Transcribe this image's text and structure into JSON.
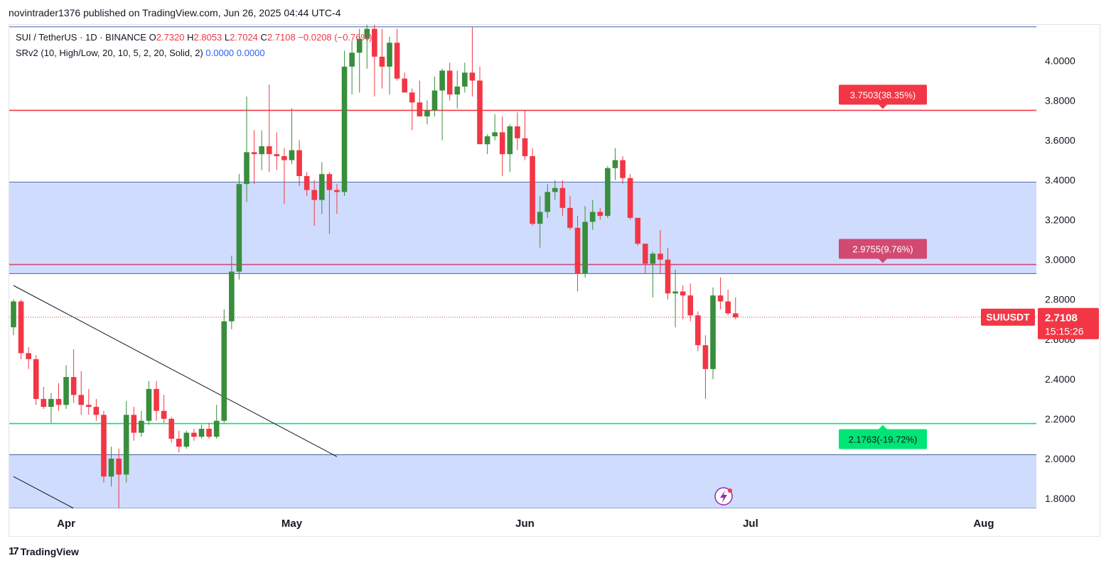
{
  "header": {
    "published": "novintrader1376 published on TradingView.com, Jun 26, 2025 04:44 UTC-4"
  },
  "legend": {
    "symbol": "SUI / TetherUS · 1D · BINANCE",
    "open_label": "O",
    "open": "2.7320",
    "high_label": "H",
    "high": "2.8053",
    "low_label": "L",
    "low": "2.7024",
    "close_label": "C",
    "close": "2.7108",
    "change": "−0.0208 (−0.76%)",
    "indicator": "SRv2 (10, High/Low, 20, 10, 5, 2, 20, Solid, 2)",
    "ind_v1": "0.0000",
    "ind_v2": "0.0000"
  },
  "footer": {
    "brand": "TradingView"
  },
  "colors": {
    "up": "#388e3c",
    "down": "#f23645",
    "zone": "#d0dcfd",
    "resistance": "#f23645",
    "mid": "#d24a72",
    "support": "#00e676"
  },
  "chart_data": {
    "type": "candlestick",
    "symbol": "SUIUSDT",
    "ylim": [
      1.75,
      4.18
    ],
    "y_ticks": [
      "4.0000",
      "3.8000",
      "3.6000",
      "3.4000",
      "3.2000",
      "3.0000",
      "2.8000",
      "2.6000",
      "2.4000",
      "2.2000",
      "2.0000",
      "1.8000"
    ],
    "x_axis": {
      "start_date": "2025-03-25",
      "end_date": "2025-08-08",
      "labels": [
        {
          "date": "2025-04-01",
          "label": "Apr"
        },
        {
          "date": "2025-05-01",
          "label": "May"
        },
        {
          "date": "2025-06-01",
          "label": "Jun"
        },
        {
          "date": "2025-07-01",
          "label": "Jul"
        },
        {
          "date": "2025-08-01",
          "label": "Aug"
        }
      ]
    },
    "candles": [
      [
        "2025-03-25",
        2.66,
        2.8,
        2.62,
        2.79
      ],
      [
        "2025-03-26",
        2.79,
        2.8,
        2.5,
        2.53
      ],
      [
        "2025-03-27",
        2.53,
        2.56,
        2.45,
        2.5
      ],
      [
        "2025-03-28",
        2.5,
        2.52,
        2.27,
        2.3
      ],
      [
        "2025-03-29",
        2.3,
        2.36,
        2.25,
        2.26
      ],
      [
        "2025-03-30",
        2.26,
        2.33,
        2.18,
        2.3
      ],
      [
        "2025-03-31",
        2.3,
        2.38,
        2.24,
        2.27
      ],
      [
        "2025-04-01",
        2.27,
        2.47,
        2.25,
        2.41
      ],
      [
        "2025-04-02",
        2.41,
        2.55,
        2.28,
        2.32
      ],
      [
        "2025-04-03",
        2.32,
        2.44,
        2.22,
        2.27
      ],
      [
        "2025-04-04",
        2.27,
        2.35,
        2.22,
        2.26
      ],
      [
        "2025-04-05",
        2.26,
        2.3,
        2.19,
        2.22
      ],
      [
        "2025-04-06",
        2.22,
        2.24,
        1.88,
        1.91
      ],
      [
        "2025-04-07",
        1.91,
        2.06,
        1.86,
        2.0
      ],
      [
        "2025-04-08",
        2.0,
        2.05,
        1.75,
        1.92
      ],
      [
        "2025-04-09",
        1.92,
        2.29,
        1.88,
        2.22
      ],
      [
        "2025-04-10",
        2.22,
        2.26,
        2.09,
        2.13
      ],
      [
        "2025-04-11",
        2.13,
        2.24,
        2.11,
        2.19
      ],
      [
        "2025-04-12",
        2.19,
        2.39,
        2.17,
        2.35
      ],
      [
        "2025-04-13",
        2.35,
        2.39,
        2.19,
        2.24
      ],
      [
        "2025-04-14",
        2.24,
        2.32,
        2.18,
        2.2
      ],
      [
        "2025-04-15",
        2.2,
        2.21,
        2.08,
        2.1
      ],
      [
        "2025-04-16",
        2.1,
        2.14,
        2.03,
        2.06
      ],
      [
        "2025-04-17",
        2.06,
        2.14,
        2.05,
        2.13
      ],
      [
        "2025-04-18",
        2.13,
        2.15,
        2.09,
        2.11
      ],
      [
        "2025-04-19",
        2.11,
        2.17,
        2.1,
        2.15
      ],
      [
        "2025-04-20",
        2.15,
        2.18,
        2.1,
        2.11
      ],
      [
        "2025-04-21",
        2.11,
        2.27,
        2.1,
        2.19
      ],
      [
        "2025-04-22",
        2.19,
        2.75,
        2.18,
        2.69
      ],
      [
        "2025-04-23",
        2.69,
        3.02,
        2.65,
        2.94
      ],
      [
        "2025-04-24",
        2.94,
        3.43,
        2.9,
        3.38
      ],
      [
        "2025-04-25",
        3.38,
        3.82,
        3.29,
        3.54
      ],
      [
        "2025-04-26",
        3.54,
        3.65,
        3.38,
        3.53
      ],
      [
        "2025-04-27",
        3.53,
        3.65,
        3.45,
        3.57
      ],
      [
        "2025-04-28",
        3.57,
        3.88,
        3.44,
        3.53
      ],
      [
        "2025-04-29",
        3.53,
        3.64,
        3.45,
        3.52
      ],
      [
        "2025-04-30",
        3.52,
        3.56,
        3.28,
        3.5
      ],
      [
        "2025-05-01",
        3.5,
        3.76,
        3.48,
        3.55
      ],
      [
        "2025-05-02",
        3.55,
        3.6,
        3.37,
        3.42
      ],
      [
        "2025-05-03",
        3.42,
        3.44,
        3.32,
        3.35
      ],
      [
        "2025-05-04",
        3.35,
        3.4,
        3.17,
        3.3
      ],
      [
        "2025-05-05",
        3.3,
        3.49,
        3.23,
        3.43
      ],
      [
        "2025-05-06",
        3.43,
        3.44,
        3.13,
        3.35
      ],
      [
        "2025-05-07",
        3.35,
        3.38,
        3.23,
        3.34
      ],
      [
        "2025-05-08",
        3.34,
        4.05,
        3.32,
        3.97
      ],
      [
        "2025-05-09",
        3.97,
        4.1,
        3.83,
        4.04
      ],
      [
        "2025-05-10",
        4.04,
        4.16,
        3.84,
        4.11
      ],
      [
        "2025-05-11",
        4.11,
        4.18,
        3.96,
        4.16
      ],
      [
        "2025-05-12",
        4.16,
        4.18,
        3.82,
        4.02
      ],
      [
        "2025-05-13",
        4.02,
        4.16,
        3.86,
        3.97
      ],
      [
        "2025-05-14",
        3.97,
        4.12,
        3.83,
        4.09
      ],
      [
        "2025-05-15",
        4.09,
        4.16,
        3.9,
        3.91
      ],
      [
        "2025-05-16",
        3.91,
        3.94,
        3.84,
        3.84
      ],
      [
        "2025-05-17",
        3.84,
        3.86,
        3.65,
        3.79
      ],
      [
        "2025-05-18",
        3.79,
        3.9,
        3.72,
        3.72
      ],
      [
        "2025-05-19",
        3.72,
        3.8,
        3.68,
        3.75
      ],
      [
        "2025-05-20",
        3.75,
        3.92,
        3.72,
        3.85
      ],
      [
        "2025-05-21",
        3.85,
        3.96,
        3.6,
        3.95
      ],
      [
        "2025-05-22",
        3.95,
        3.99,
        3.8,
        3.83
      ],
      [
        "2025-05-23",
        3.83,
        3.95,
        3.76,
        3.87
      ],
      [
        "2025-05-24",
        3.87,
        3.99,
        3.84,
        3.94
      ],
      [
        "2025-05-25",
        3.94,
        4.17,
        3.82,
        3.9
      ],
      [
        "2025-05-26",
        3.9,
        3.97,
        3.59,
        3.58
      ],
      [
        "2025-05-27",
        3.58,
        3.63,
        3.53,
        3.62
      ],
      [
        "2025-05-28",
        3.62,
        3.73,
        3.6,
        3.64
      ],
      [
        "2025-05-29",
        3.64,
        3.72,
        3.42,
        3.53
      ],
      [
        "2025-05-30",
        3.53,
        3.68,
        3.44,
        3.67
      ],
      [
        "2025-05-31",
        3.67,
        3.74,
        3.55,
        3.61
      ],
      [
        "2025-06-01",
        3.61,
        3.75,
        3.5,
        3.52
      ],
      [
        "2025-06-02",
        3.52,
        3.56,
        3.17,
        3.18
      ],
      [
        "2025-06-03",
        3.18,
        3.32,
        3.06,
        3.24
      ],
      [
        "2025-06-04",
        3.24,
        3.38,
        3.21,
        3.34
      ],
      [
        "2025-06-05",
        3.34,
        3.4,
        3.3,
        3.36
      ],
      [
        "2025-06-06",
        3.36,
        3.4,
        3.22,
        3.26
      ],
      [
        "2025-06-07",
        3.26,
        3.32,
        3.15,
        3.16
      ],
      [
        "2025-06-08",
        3.16,
        3.22,
        2.84,
        2.93
      ],
      [
        "2025-06-09",
        2.93,
        3.27,
        2.91,
        3.19
      ],
      [
        "2025-06-10",
        3.19,
        3.3,
        3.15,
        3.24
      ],
      [
        "2025-06-11",
        3.24,
        3.26,
        3.2,
        3.22
      ],
      [
        "2025-06-12",
        3.22,
        3.47,
        3.21,
        3.46
      ],
      [
        "2025-06-13",
        3.46,
        3.56,
        3.4,
        3.5
      ],
      [
        "2025-06-14",
        3.5,
        3.52,
        3.38,
        3.41
      ],
      [
        "2025-06-15",
        3.41,
        3.43,
        3.2,
        3.21
      ],
      [
        "2025-06-16",
        3.21,
        3.21,
        3.07,
        3.08
      ],
      [
        "2025-06-17",
        3.08,
        3.08,
        2.93,
        2.98
      ],
      [
        "2025-06-18",
        2.98,
        3.04,
        2.81,
        3.03
      ],
      [
        "2025-06-19",
        3.03,
        3.15,
        2.93,
        3.0
      ],
      [
        "2025-06-20",
        3.0,
        3.06,
        2.8,
        2.83
      ],
      [
        "2025-06-21",
        2.83,
        2.95,
        2.66,
        2.84
      ],
      [
        "2025-06-22",
        2.84,
        2.87,
        2.7,
        2.82
      ],
      [
        "2025-06-23",
        2.82,
        2.88,
        2.69,
        2.72
      ],
      [
        "2025-06-24",
        2.72,
        2.74,
        2.54,
        2.57
      ],
      [
        "2025-06-25",
        2.57,
        2.62,
        2.3,
        2.45
      ],
      [
        "2025-06-26",
        2.45,
        2.86,
        2.4,
        2.82
      ],
      [
        "2025-06-27",
        2.82,
        2.91,
        2.75,
        2.79
      ],
      [
        "2025-06-28",
        2.79,
        2.85,
        2.72,
        2.73
      ],
      [
        "2025-06-29",
        2.73,
        2.81,
        2.7,
        2.71
      ]
    ],
    "zones": [
      {
        "from": 2.93,
        "to": 3.39
      },
      {
        "from": 1.75,
        "to": 2.02
      }
    ],
    "levels": [
      {
        "price": 3.7503,
        "label": "3.7503(38.35%)",
        "color": "#f23645"
      },
      {
        "price": 2.9755,
        "label": "2.9755(9.76%)",
        "color": "#d24a72"
      },
      {
        "price": 2.1763,
        "label": "2.1763(-19.72%)",
        "color": "#00e676"
      }
    ],
    "top_line": 4.17,
    "last_price": {
      "price": 2.7108,
      "label": "2.7108",
      "countdown": "15:15:26",
      "symbol": "SUIUSDT"
    },
    "trendlines": [
      {
        "from": [
          "2025-03-25",
          2.87
        ],
        "to": [
          "2025-05-07",
          2.01
        ]
      },
      {
        "from": [
          "2025-03-25",
          1.91
        ],
        "to": [
          "2025-04-02",
          1.75
        ]
      }
    ]
  }
}
